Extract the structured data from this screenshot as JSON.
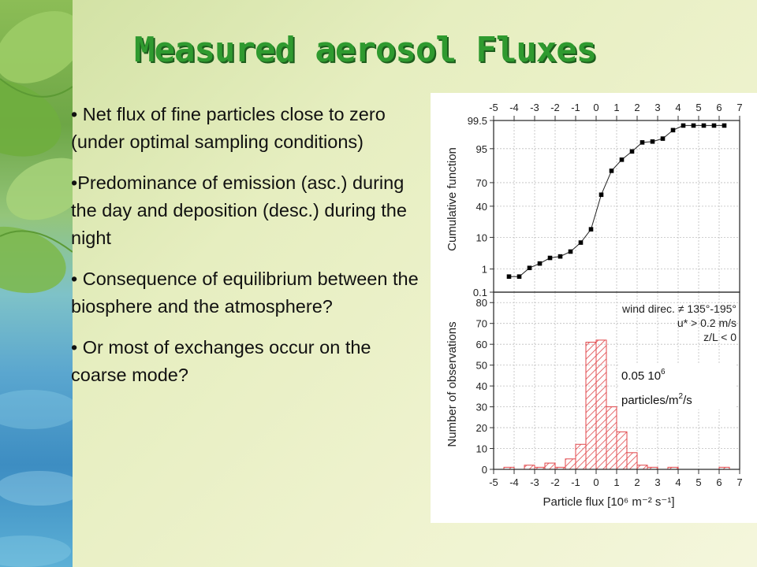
{
  "slide": {
    "title": "Measured aerosol Fluxes",
    "bullets": [
      "• Net flux of fine particles close to zero (under optimal sampling conditions)",
      "•Predominance of emission (asc.) during the day and deposition (desc.) during the night",
      "• Consequence of equilibrium between the biosphere and the atmosphere?",
      "• Or most of exchanges occur on the coarse mode?"
    ]
  },
  "chart_data": [
    {
      "type": "line",
      "ylabel": "Cumulative function",
      "x_ticks": [
        "-5",
        "-4",
        "-3",
        "-2",
        "-1",
        "0",
        "1",
        "2",
        "3",
        "4",
        "5",
        "6",
        "7"
      ],
      "y_ticks": [
        "99.5",
        "95",
        "70",
        "40",
        "10",
        "1",
        "0.1"
      ],
      "xlim": [
        -5,
        7
      ],
      "x": [
        -4.25,
        -3.75,
        -3.25,
        -2.75,
        -2.25,
        -1.75,
        -1.25,
        -0.75,
        -0.25,
        0.25,
        0.75,
        1.25,
        1.75,
        2.25,
        2.75,
        3.25,
        3.75,
        4.25,
        4.75,
        5.25,
        5.75,
        6.25
      ],
      "y": [
        0.5,
        0.5,
        1.1,
        1.6,
        2.5,
        2.8,
        4.0,
        7.3,
        15.5,
        55,
        82,
        90,
        94,
        96.8,
        97.0,
        97.6,
        98.8,
        99.2,
        99.2,
        99.2,
        99.2,
        99.2
      ],
      "grid": true
    },
    {
      "type": "bar",
      "xlabel": "Particle flux [10⁶ m⁻² s⁻¹]",
      "ylabel": "Number of observations",
      "x_ticks": [
        "-5",
        "-4",
        "-3",
        "-2",
        "-1",
        "0",
        "1",
        "2",
        "3",
        "4",
        "5",
        "6",
        "7"
      ],
      "y_ticks": [
        "0",
        "10",
        "20",
        "30",
        "40",
        "50",
        "60",
        "70",
        "80"
      ],
      "xlim": [
        -5,
        7
      ],
      "ylim": [
        0,
        85
      ],
      "bin_width": 0.5,
      "bin_centers": [
        -4.25,
        -3.75,
        -3.25,
        -2.75,
        -2.25,
        -1.75,
        -1.25,
        -0.75,
        -0.25,
        0.25,
        0.75,
        1.25,
        1.75,
        2.25,
        2.75,
        3.25,
        3.75,
        4.25,
        4.75,
        5.25,
        5.75,
        6.25
      ],
      "values": [
        1,
        0,
        2,
        1,
        3,
        1,
        5,
        12,
        61,
        62,
        30,
        18,
        8,
        2,
        1,
        0,
        1,
        0,
        0,
        0,
        0,
        1
      ],
      "legend_lines": [
        "wind direc. ≠ 135°-195°",
        "u* > 0.2 m/s",
        "z/L < 0"
      ],
      "annotation": {
        "line1": "0.05 10",
        "line1_sup": "6",
        "line2": "particles/m",
        "line2_sup": "2",
        "line2_end": "/s"
      },
      "grid": true
    }
  ],
  "colors": {
    "title": "#2f9a2f",
    "bar": "#e0464a",
    "marker": "#000000"
  }
}
